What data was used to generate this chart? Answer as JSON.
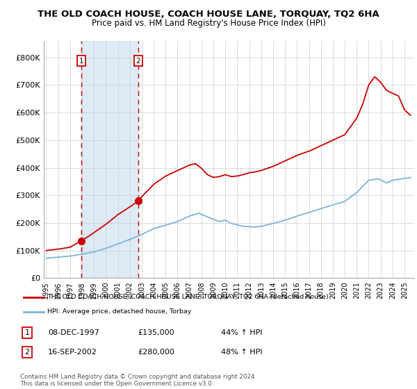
{
  "title": "THE OLD COACH HOUSE, COACH HOUSE LANE, TORQUAY, TQ2 6HA",
  "subtitle": "Price paid vs. HM Land Registry's House Price Index (HPI)",
  "ylabel_ticks": [
    "£0",
    "£100K",
    "£200K",
    "£300K",
    "£400K",
    "£500K",
    "£600K",
    "£700K",
    "£800K"
  ],
  "ytick_vals": [
    0,
    100000,
    200000,
    300000,
    400000,
    500000,
    600000,
    700000,
    800000
  ],
  "ylim": [
    0,
    860000
  ],
  "xlim_start": 1994.8,
  "xlim_end": 2025.8,
  "sale1_date": 1997.93,
  "sale1_price": 135000,
  "sale2_date": 2002.71,
  "sale2_price": 280000,
  "hpi_color": "#7ab3d9",
  "price_color": "#cc0000",
  "dashed_color": "#cc0000",
  "shaded_color": "#d8e8f5",
  "legend_label1": "THE OLD COACH HOUSE, COACH HOUSE LANE, TORQUAY, TQ2 6HA (detached house)",
  "legend_label2": "HPI: Average price, detached house, Torbay",
  "table_row1": [
    "1",
    "08-DEC-1997",
    "£135,000",
    "44% ↑ HPI"
  ],
  "table_row2": [
    "2",
    "16-SEP-2002",
    "£280,000",
    "48% ↑ HPI"
  ],
  "footer": "Contains HM Land Registry data © Crown copyright and database right 2024.\nThis data is licensed under the Open Government Licence v3.0.",
  "background_color": "#ffffff",
  "grid_color": "#cccccc"
}
